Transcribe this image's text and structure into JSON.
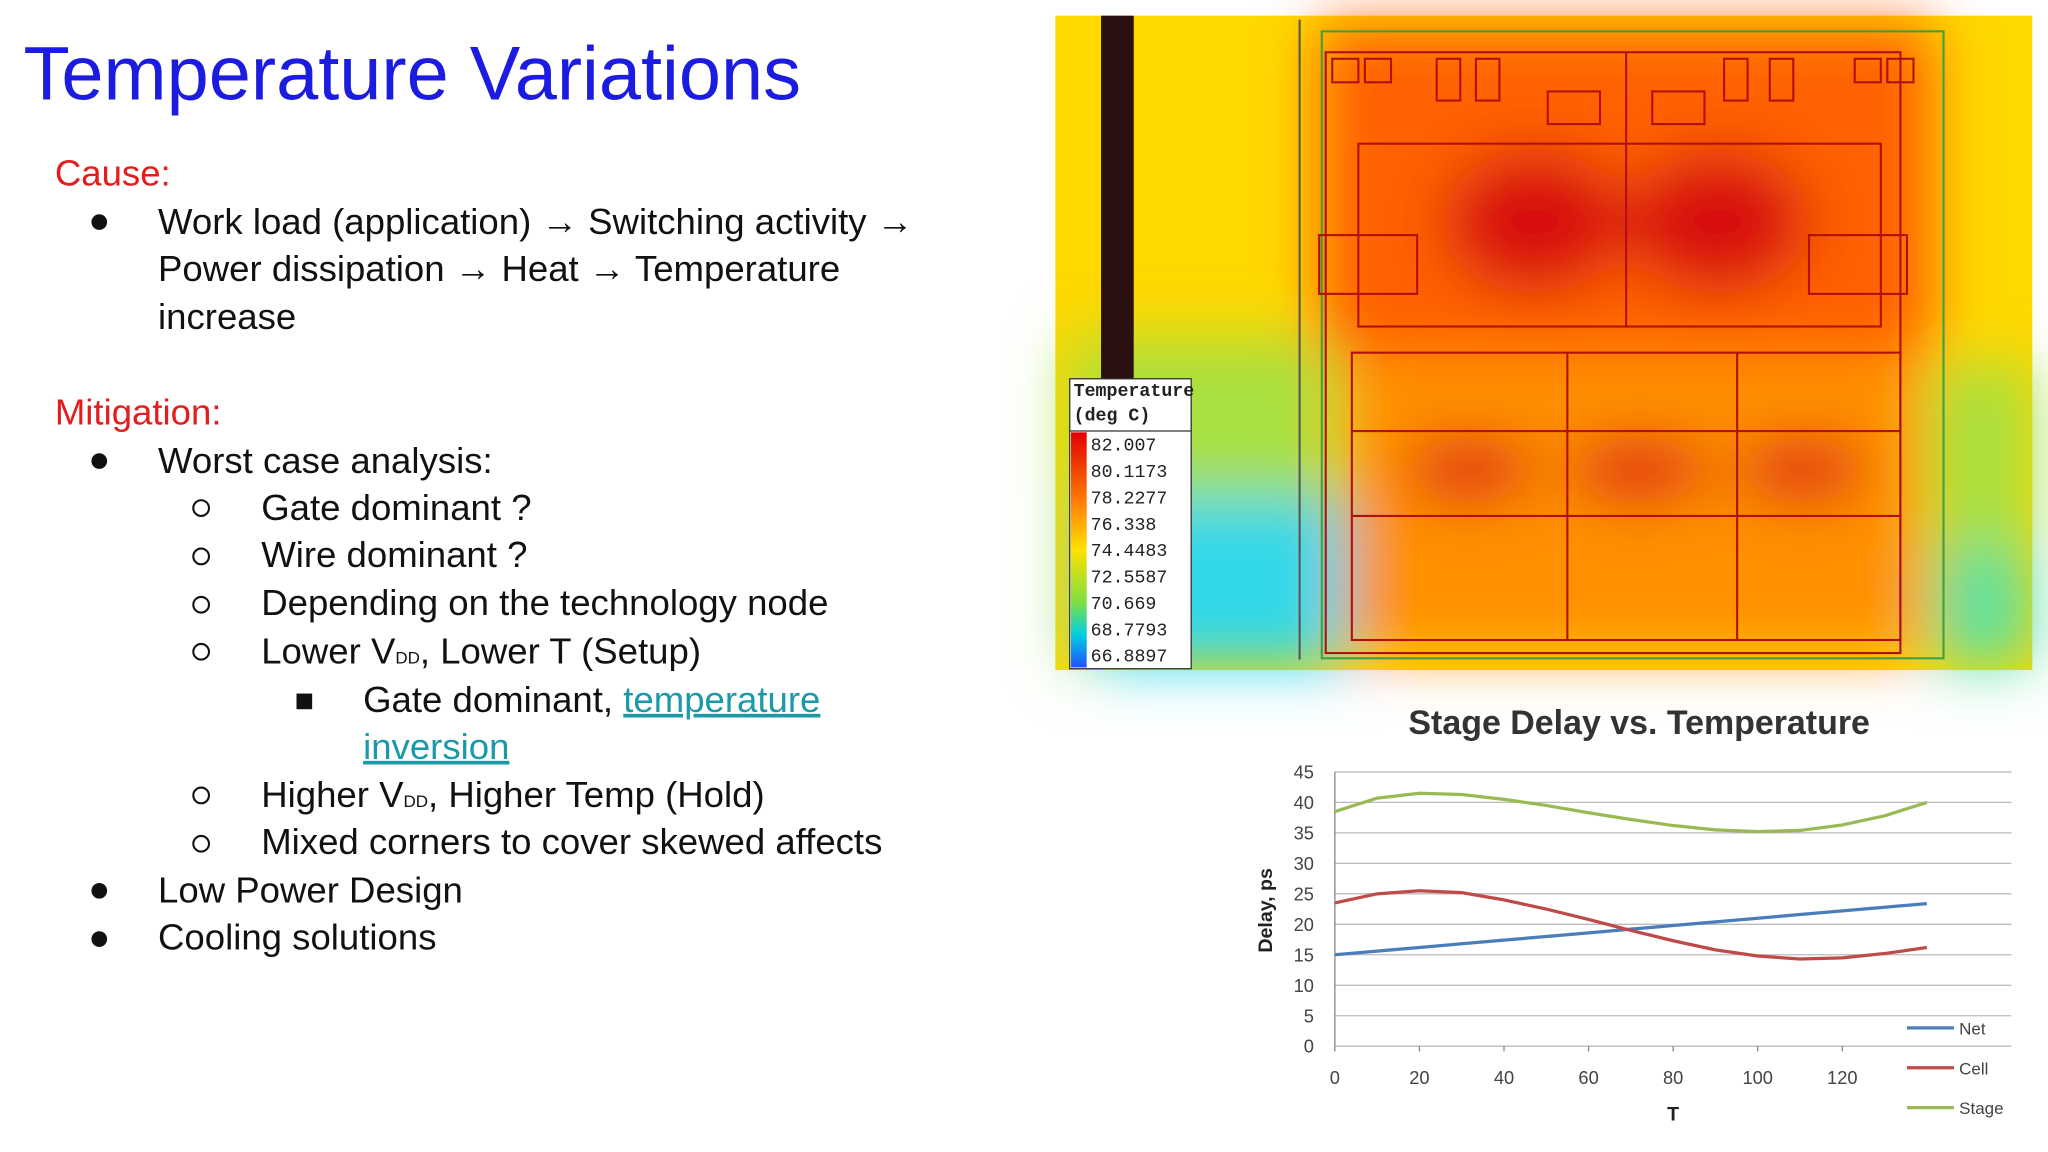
{
  "slide": {
    "title": "Temperature Variations",
    "cause": {
      "heading": "Cause:",
      "lines": [
        "Work load (application) → Switching activity →",
        "Power dissipation → Heat → Temperature",
        "increase"
      ]
    },
    "mitigation": {
      "heading": "Mitigation:",
      "worst_case": "Worst case analysis:",
      "gate": "Gate dominant ?",
      "wire": "Wire dominant ?",
      "depending": "Depending on the technology node",
      "lower": [
        "Lower V",
        "DD",
        ", Lower T (Setup)"
      ],
      "inversion": [
        "Gate dominant, ",
        "temperature",
        "inversion"
      ],
      "higher": [
        "Higher V",
        "DD",
        ", Higher Temp (Hold)"
      ],
      "mixed": "Mixed corners to cover skewed affects",
      "low_power": "Low Power Design",
      "cooling": "Cooling solutions"
    }
  },
  "heatmap": {
    "legend_title": [
      "Temperature",
      "(deg C)"
    ],
    "legend_values": [
      82.007,
      80.1173,
      78.2277,
      76.338,
      74.4483,
      72.5587,
      70.669,
      68.7793,
      66.8897
    ]
  },
  "chart_data": {
    "type": "line",
    "title": "Stage Delay vs. Temperature",
    "x_label": "T",
    "y_label": "Delay, ps",
    "x": [
      0,
      10,
      20,
      30,
      40,
      50,
      60,
      70,
      80,
      90,
      100,
      110,
      120,
      130,
      140
    ],
    "series": [
      {
        "name": "Net",
        "color": "#4a7ebb",
        "values": [
          15,
          15.6,
          16.2,
          16.8,
          17.4,
          18.0,
          18.6,
          19.2,
          19.8,
          20.4,
          21,
          21.6,
          22.2,
          22.8,
          23.4
        ]
      },
      {
        "name": "Cell",
        "color": "#be4b48",
        "values": [
          23.5,
          25,
          25.5,
          25.2,
          24,
          22.5,
          20.8,
          19,
          17.3,
          15.8,
          14.8,
          14.3,
          14.5,
          15.2,
          16.2
        ]
      },
      {
        "name": "Stage",
        "color": "#98b954",
        "values": [
          38.5,
          40.7,
          41.5,
          41.3,
          40.5,
          39.5,
          38.3,
          37.2,
          36.2,
          35.5,
          35.2,
          35.4,
          36.3,
          37.8,
          40
        ]
      }
    ],
    "xlim": [
      0,
      160
    ],
    "xticks": [
      0,
      20,
      40,
      60,
      80,
      100,
      120
    ],
    "ylim": [
      0,
      45
    ],
    "yticks": [
      0,
      5,
      10,
      15,
      20,
      25,
      30,
      35,
      40,
      45
    ],
    "grid": true
  }
}
